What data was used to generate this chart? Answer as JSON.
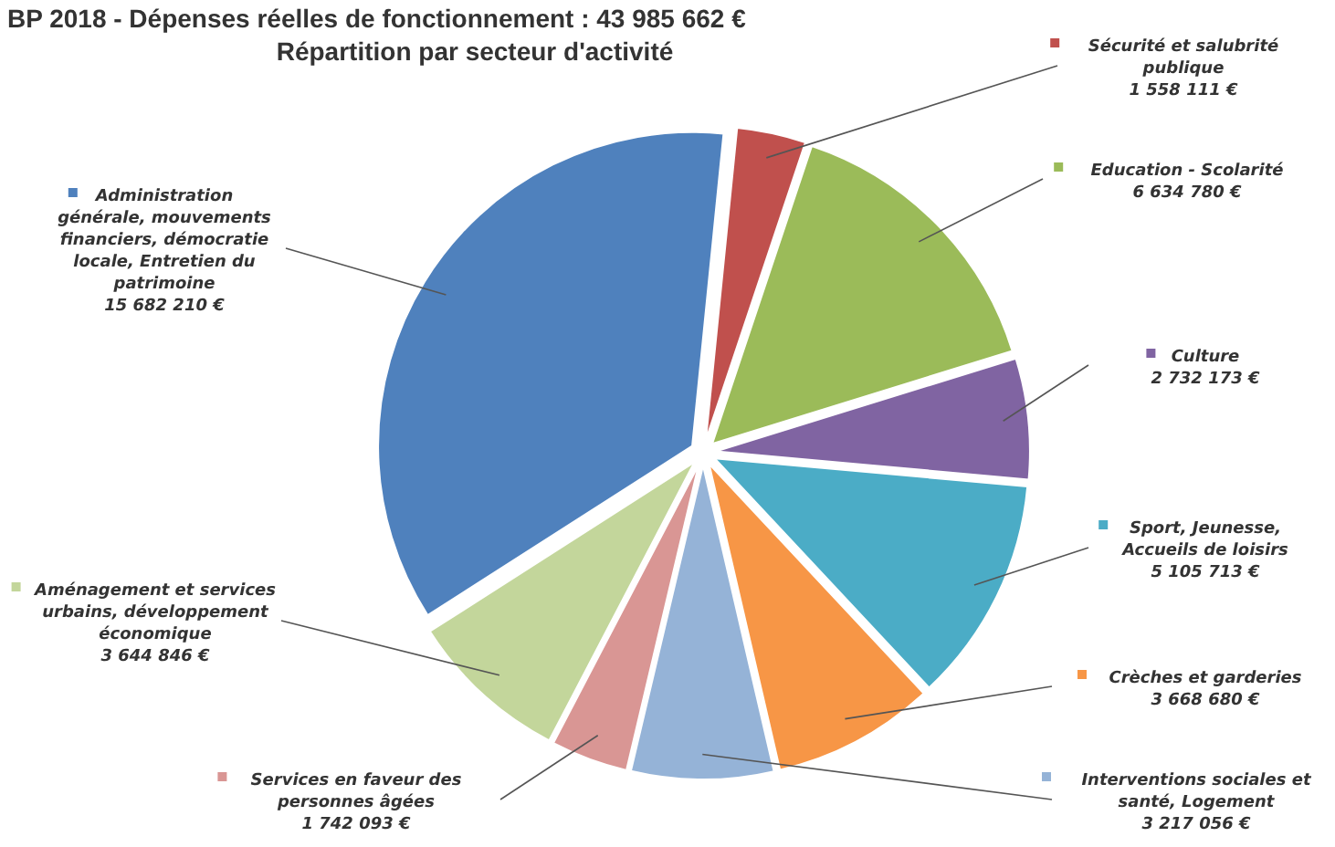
{
  "chart_data": {
    "type": "pie",
    "title": "BP 2018 - Dépenses réelles de fonctionnement : 43 985 662 €",
    "subtitle": "Répartition par secteur d'activité",
    "categories": [
      "Sécurité et salubrité publique",
      "Education - Scolarité",
      "Culture",
      "Sport, Jeunesse, Accueils de loisirs",
      "Crèches et garderies",
      "Interventions sociales et santé, Logement",
      "Services en faveur des personnes âgées",
      "Aménagement et services urbains, développement économique",
      "Administration générale, mouvements financiers, démocratie locale, Entretien du patrimoine"
    ],
    "values": [
      1558111,
      6634780,
      2732173,
      5105713,
      3668680,
      3217056,
      1742093,
      3644846,
      15682210
    ],
    "value_labels": [
      "1 558 111 €",
      "6 634 780 €",
      "2 732 173 €",
      "5 105 713 €",
      "3 668 680 €",
      "3 217 056 €",
      "1 742 093 €",
      "3 644 846 €",
      "15 682 210 €"
    ],
    "colors": [
      "#c0504d",
      "#9bbb59",
      "#8064a2",
      "#4bacc6",
      "#f79646",
      "#95b3d7",
      "#d99694",
      "#c3d69b",
      "#4f81bd"
    ],
    "legend": "top left"
  }
}
